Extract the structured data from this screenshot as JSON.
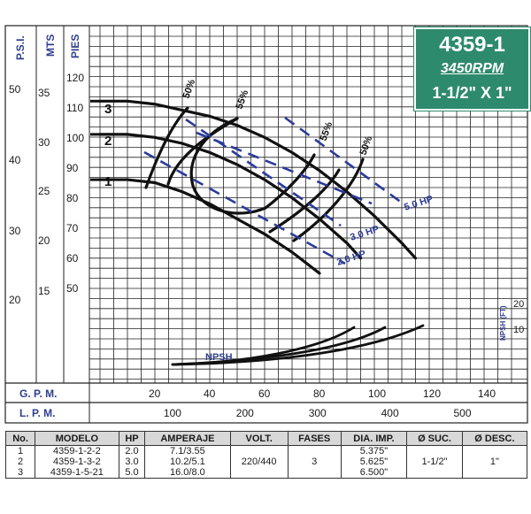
{
  "badge": {
    "model": "4359-1",
    "rpm": "3450RPM",
    "size": "1-1/2\" X 1\""
  },
  "axes": {
    "psi_label": "P.S.I.",
    "mts_label": "MTS",
    "pies_label": "PIES",
    "psi_ticks": [
      "50",
      "40",
      "30",
      "20"
    ],
    "mts_ticks": [
      "35",
      "30",
      "25",
      "20",
      "15"
    ],
    "pies_ticks": [
      "120",
      "110",
      "100",
      "90",
      "80",
      "70",
      "60",
      "50"
    ],
    "gpm_label": "G. P. M.",
    "gpm_ticks": [
      "20",
      "40",
      "60",
      "80",
      "100",
      "120",
      "140"
    ],
    "lpm_label": "L. P. M.",
    "lpm_ticks": [
      "100",
      "200",
      "300",
      "400",
      "500"
    ],
    "npsh_label": "NPSH (FT)",
    "npsh_ticks": [
      "20",
      "10"
    ]
  },
  "chart_data": {
    "type": "line",
    "x_unit": "G.P.M.",
    "y_unit": "PIES",
    "xlim": [
      0,
      160
    ],
    "ylim": [
      0,
      120
    ],
    "series": [
      {
        "name": "1",
        "x": [
          0,
          10,
          20,
          30,
          40,
          50,
          60,
          70,
          80
        ],
        "y": [
          86,
          86,
          85,
          82,
          78,
          73,
          68,
          62,
          55
        ]
      },
      {
        "name": "2",
        "x": [
          0,
          10,
          20,
          30,
          40,
          50,
          60,
          70,
          80,
          90,
          95
        ],
        "y": [
          101,
          101,
          100,
          98,
          95,
          91,
          86,
          80,
          73,
          65,
          60
        ]
      },
      {
        "name": "3",
        "x": [
          0,
          10,
          20,
          30,
          40,
          50,
          60,
          70,
          80,
          90,
          100,
          110,
          115
        ],
        "y": [
          112,
          112,
          111,
          109,
          107,
          104,
          100,
          95,
          89,
          82,
          74,
          65,
          60
        ]
      }
    ],
    "hp_lines": [
      "2.0 HP",
      "3.0 HP",
      "5.0 HP"
    ],
    "efficiency_labels": [
      "50%",
      "55%",
      "55%",
      "50%"
    ],
    "npsh_series_label": "NPSH",
    "impeller_labels": [
      "1",
      "2",
      "3"
    ]
  },
  "table": {
    "headers": [
      "No.",
      "MODELO",
      "HP",
      "AMPERAJE",
      "VOLT.",
      "FASES",
      "DIA. IMP.",
      "Ø SUC.",
      "Ø DESC."
    ],
    "rows": [
      [
        "1",
        "4359-1-2-2",
        "2.0",
        "7.1/3.55",
        "",
        "",
        "5.375\"",
        "",
        ""
      ],
      [
        "2",
        "4359-1-3-2",
        "3.0",
        "10.2/5.1",
        "220/440",
        "3",
        "5.625\"",
        "1-1/2\"",
        "1\""
      ],
      [
        "3",
        "4359-1-5-21",
        "5.0",
        "16.0/8.0",
        "",
        "",
        "6.500\"",
        "",
        ""
      ]
    ]
  }
}
